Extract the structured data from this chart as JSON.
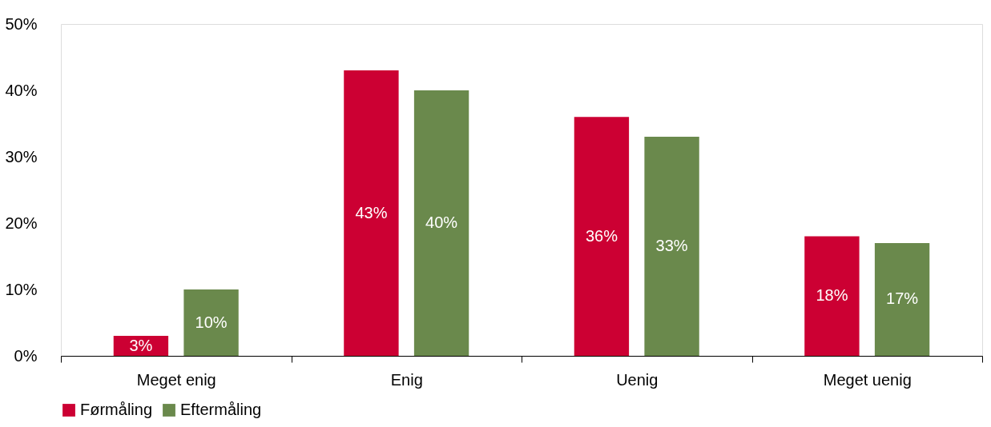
{
  "chart_data": {
    "type": "bar",
    "categories": [
      "Meget enig",
      "Enig",
      "Uenig",
      "Meget uenig"
    ],
    "series": [
      {
        "name": "Førmåling",
        "color": "#cc0033",
        "values": [
          3,
          43,
          36,
          18
        ],
        "value_labels": [
          "3%",
          "43%",
          "36%",
          "18%"
        ]
      },
      {
        "name": "Eftermåling",
        "color": "#6a894c",
        "values": [
          10,
          40,
          33,
          17
        ],
        "value_labels": [
          "10%",
          "40%",
          "33%",
          "17%"
        ]
      }
    ],
    "ylim": [
      0,
      50
    ],
    "yticks": [
      {
        "value": 0,
        "label": "0%"
      },
      {
        "value": 10,
        "label": "10%"
      },
      {
        "value": 20,
        "label": "20%"
      },
      {
        "value": 30,
        "label": "30%"
      },
      {
        "value": 40,
        "label": "40%"
      },
      {
        "value": 50,
        "label": "50%"
      }
    ],
    "grid": false,
    "legend": "bottom"
  }
}
